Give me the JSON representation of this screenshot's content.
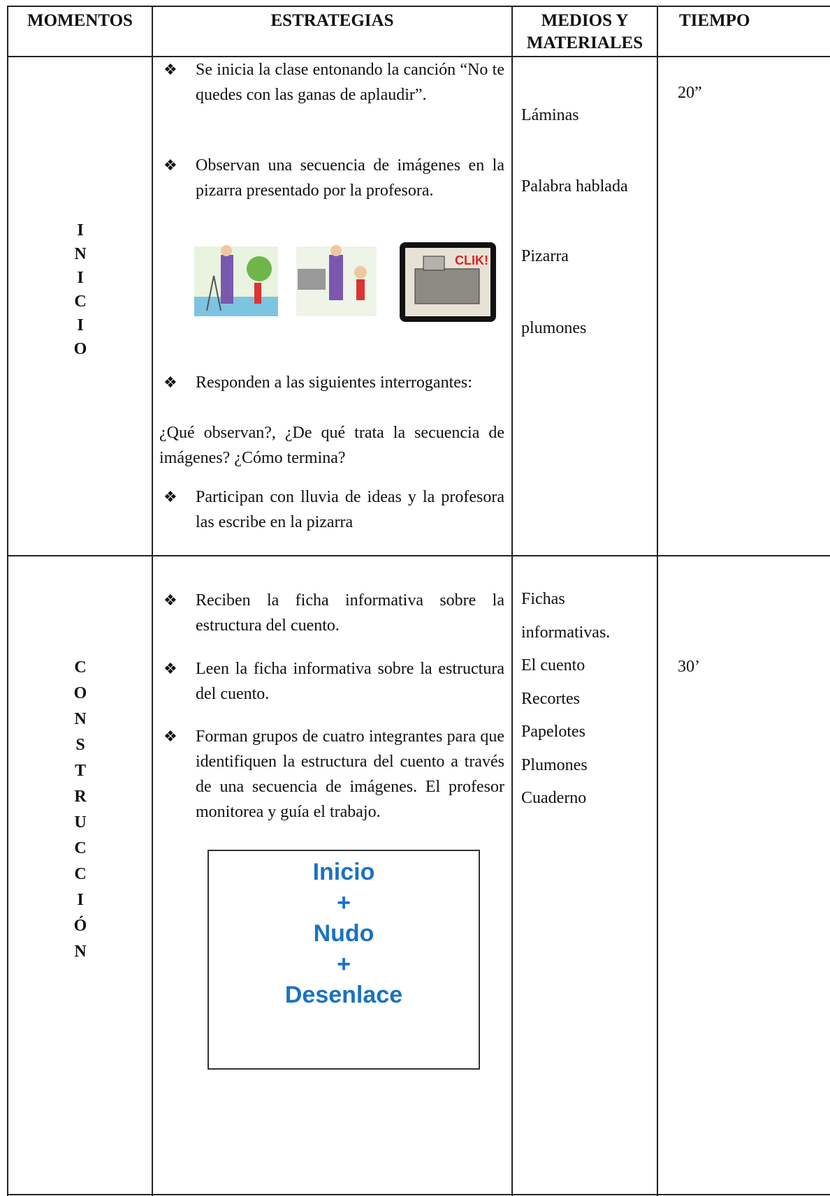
{
  "table": {
    "header": [
      "MOMENTOS",
      "ESTRATEGIAS",
      "MEDIOS Y MATERIALES",
      "TIEMPO"
    ],
    "rows": [
      {
        "moment": "INICIO",
        "strategies": [
          {
            "text": "Se inicia la clase entonando la canción “No te quedes con las ganas de aplaudir”."
          },
          {
            "text": "Observan una secuencia de imágenes en la pizarra presentado por la profesora."
          },
          {
            "text": "Responden a las siguientes interrogantes:",
            "note": "¿Qué observan?, ¿De qué trata la secuencia de imágenes? ¿Cómo termina?"
          },
          {
            "text": "Participan con lluvia de ideas y la profesora las escribe en la pizarra"
          }
        ],
        "materials": [
          "Láminas",
          "Palabra hablada",
          "Pizarra",
          "plumones"
        ],
        "time": "20”"
      },
      {
        "moment": "CONSTRUCCIÓN",
        "strategies": [
          {
            "text": "Reciben la ficha informativa sobre la estructura del cuento."
          },
          {
            "text": "Leen la ficha informativa sobre la estructura del cuento."
          },
          {
            "text": "Forman grupos de cuatro integrantes para que identifiquen la estructura del cuento a través de una secuencia de imágenes. El profesor monitorea y guía el trabajo."
          }
        ],
        "diagram": [
          "Inicio",
          "+",
          "Nudo",
          "+",
          "Desenlace"
        ],
        "materials": [
          "Fichas",
          "informativas.",
          "El cuento",
          "Recortes",
          "Papelotes",
          "Plumones",
          "Cuaderno"
        ],
        "time": "30’"
      }
    ]
  }
}
